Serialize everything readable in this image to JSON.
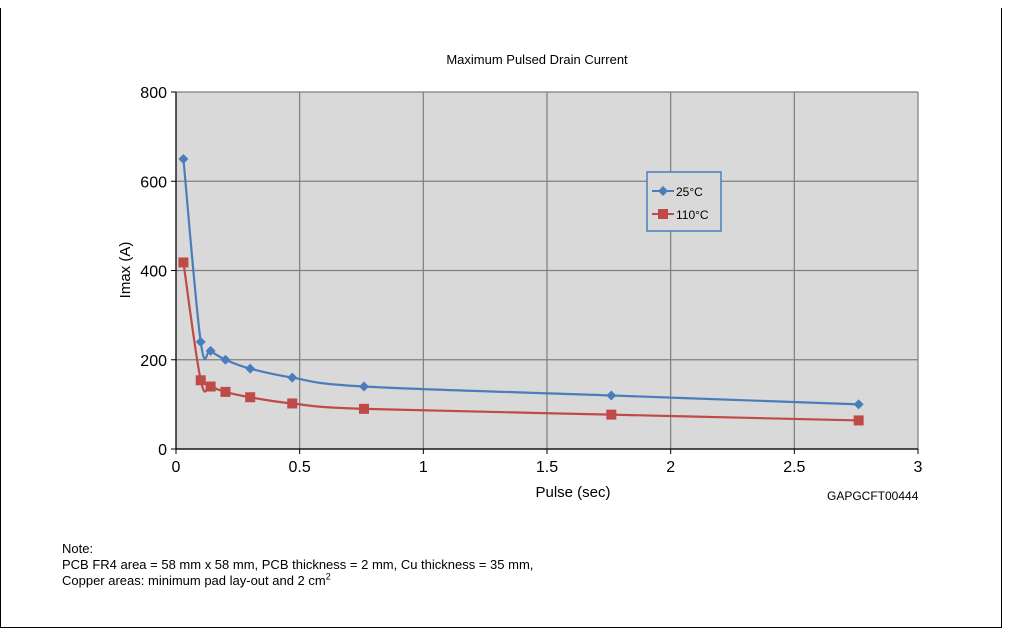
{
  "chart_data": {
    "type": "line",
    "title": "Maximum Pulsed Drain Current",
    "xlabel": "Pulse (sec)",
    "ylabel": "Imax (A)",
    "xlim": [
      0,
      3
    ],
    "ylim": [
      0,
      800
    ],
    "x_ticks": [
      "0",
      "0.5",
      "1",
      "1.5",
      "2",
      "2.5",
      "3"
    ],
    "y_ticks": [
      "0",
      "200",
      "400",
      "600",
      "800"
    ],
    "grid": true,
    "legend_position": "upper-right",
    "series": [
      {
        "name": "25°C",
        "color": "#4a7ebb",
        "marker": "diamond",
        "x": [
          0.03,
          0.1,
          0.14,
          0.2,
          0.3,
          0.47,
          0.76,
          1.76,
          2.76
        ],
        "y": [
          650,
          240,
          220,
          200,
          180,
          160,
          140,
          120,
          100
        ]
      },
      {
        "name": "110°C",
        "color": "#be4b48",
        "marker": "square",
        "x": [
          0.03,
          0.1,
          0.14,
          0.2,
          0.3,
          0.47,
          0.76,
          1.76,
          2.76
        ],
        "y": [
          418,
          154,
          140,
          128,
          116,
          102,
          90,
          77,
          64
        ]
      }
    ],
    "annotation": "GAPGCFT00444"
  },
  "notes": {
    "heading": "Note:",
    "line1": "PCB FR4 area = 58 mm x 58 mm, PCB thickness = 2 mm, Cu thickness = 35 mm,",
    "line2": "Copper areas: minimum pad lay-out and 2 cm",
    "line2_sup": "2"
  },
  "colors": {
    "plot_background": "#d9d9d9",
    "grid": "#7f7f7f"
  }
}
